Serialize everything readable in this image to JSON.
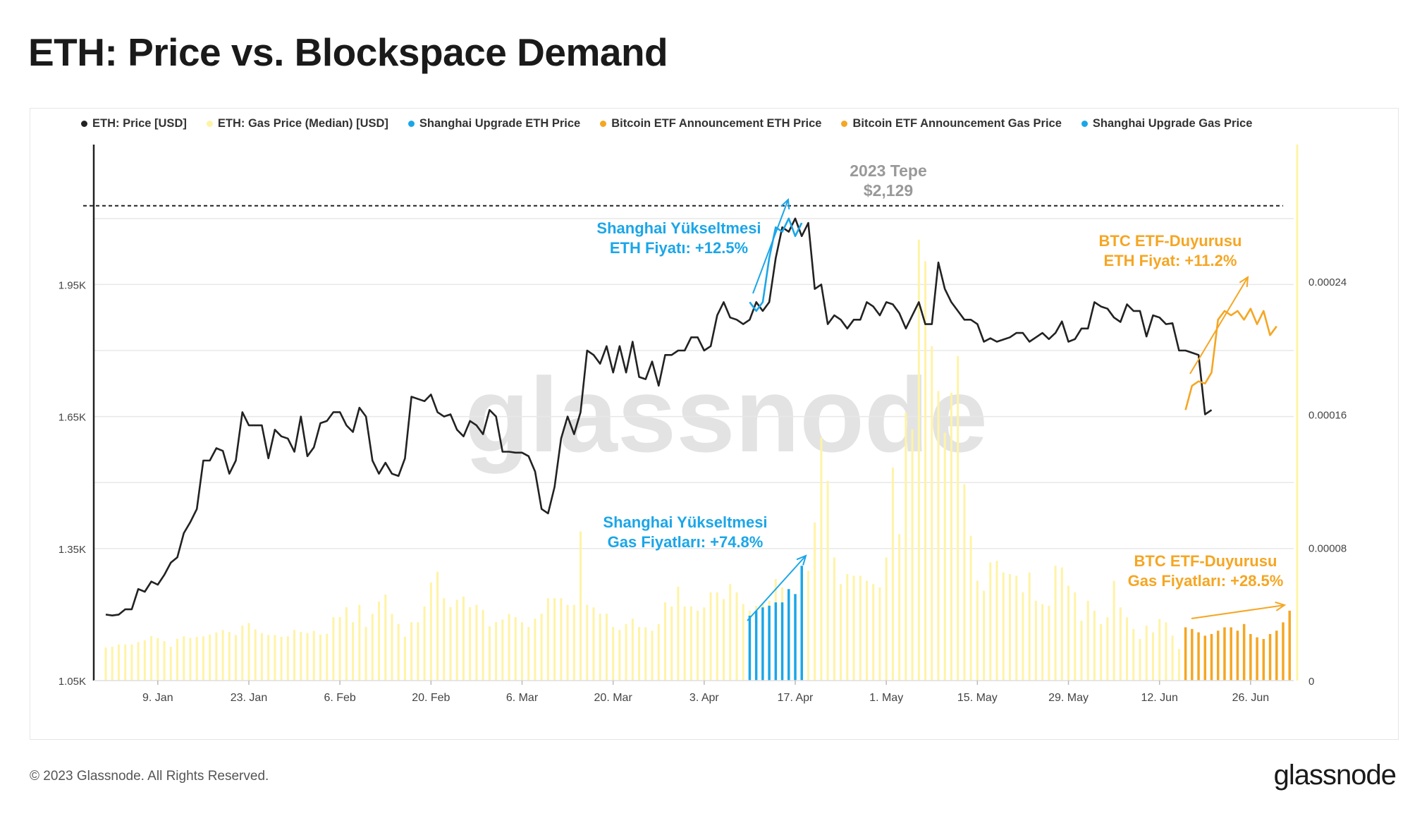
{
  "page": {
    "title": "ETH: Price vs. Blockspace Demand",
    "footer": "© 2023 Glassnode. All Rights Reserved.",
    "brand": "glassnode",
    "watermark": "glassnode"
  },
  "legend": [
    {
      "label": "ETH: Price [USD]",
      "color": "#222222"
    },
    {
      "label": "ETH: Gas Price (Median) [USD]",
      "color": "#fff3a6"
    },
    {
      "label": "Shanghai Upgrade ETH Price",
      "color": "#1ba6e8"
    },
    {
      "label": "Bitcoin ETF Announcement ETH Price",
      "color": "#f5a623"
    },
    {
      "label": "Bitcoin ETF Announcement Gas Price",
      "color": "#f5a623"
    },
    {
      "label": "Shanghai Upgrade Gas Price",
      "color": "#1ba6e8"
    }
  ],
  "annotations": {
    "peak_line1": "2023 Tepe",
    "peak_line2": "$2,129",
    "shanghai_eth_line1": "Shanghai Yükseltmesi",
    "shanghai_eth_line2": "ETH Fiyatı: +12.5%",
    "btc_eth_line1": "BTC ETF-Duyurusu",
    "btc_eth_line2": "ETH Fiyat: +11.2%",
    "shanghai_gas_line1": "Shanghai Yükseltmesi",
    "shanghai_gas_line2": "Gas Fiyatları: +74.8%",
    "btc_gas_line1": "BTC ETF-Duyurusu",
    "btc_gas_line2": "Gas Fiyatları: +28.5%"
  },
  "colors": {
    "price": "#222222",
    "gas": "#fff3a6",
    "shanghai": "#1ba6e8",
    "btc_etf": "#f5a623",
    "grid": "#e8e8e8",
    "peak_text": "#999999"
  },
  "chart_data": {
    "type": "line",
    "title": "ETH: Price vs. Blockspace Demand",
    "x_start": "2023-01-01",
    "x_end": "2023-06-30",
    "x_ticks": [
      {
        "label": "9. Jan",
        "day": 8
      },
      {
        "label": "23. Jan",
        "day": 22
      },
      {
        "label": "6. Feb",
        "day": 36
      },
      {
        "label": "20. Feb",
        "day": 50
      },
      {
        "label": "6. Mar",
        "day": 64
      },
      {
        "label": "20. Mar",
        "day": 78
      },
      {
        "label": "3. Apr",
        "day": 92
      },
      {
        "label": "17. Apr",
        "day": 106
      },
      {
        "label": "1. May",
        "day": 120
      },
      {
        "label": "15. May",
        "day": 134
      },
      {
        "label": "29. May",
        "day": 148
      },
      {
        "label": "12. Jun",
        "day": 162
      },
      {
        "label": "26. Jun",
        "day": 176
      }
    ],
    "y_left": {
      "label": "ETH: Price [USD]",
      "min": 1050,
      "max": 2260,
      "ticks": [
        {
          "value": 1050,
          "label": "1.05K"
        },
        {
          "value": 1350,
          "label": "1.35K"
        },
        {
          "value": 1650,
          "label": "1.65K"
        },
        {
          "value": 1950,
          "label": "1.95K"
        }
      ],
      "gridlines": [
        1350,
        1500,
        1650,
        1800,
        1950,
        2100
      ]
    },
    "y_right": {
      "label": "ETH: Gas Price (Median) [USD]",
      "min": 0,
      "max": 0.00032,
      "ticks": [
        {
          "value": 0,
          "label": "0"
        },
        {
          "value": 8e-05,
          "label": "0.00008"
        },
        {
          "value": 0.00016,
          "label": "0.00016"
        },
        {
          "value": 0.00024,
          "label": "0.00024"
        }
      ]
    },
    "peak_value": 2129,
    "series": [
      {
        "name": "ETH: Price [USD]",
        "axis": "left",
        "start_day": 0,
        "values": [
          1200,
          1198,
          1200,
          1212,
          1212,
          1258,
          1252,
          1275,
          1268,
          1290,
          1318,
          1330,
          1385,
          1410,
          1440,
          1550,
          1550,
          1578,
          1572,
          1520,
          1550,
          1660,
          1630,
          1630,
          1630,
          1555,
          1620,
          1605,
          1600,
          1570,
          1650,
          1560,
          1580,
          1635,
          1640,
          1660,
          1660,
          1630,
          1615,
          1670,
          1650,
          1550,
          1520,
          1545,
          1520,
          1515,
          1555,
          1695,
          1690,
          1685,
          1700,
          1660,
          1650,
          1655,
          1620,
          1605,
          1640,
          1630,
          1610,
          1665,
          1650,
          1570,
          1570,
          1568,
          1568,
          1560,
          1525,
          1440,
          1430,
          1490,
          1600,
          1650,
          1610,
          1660,
          1800,
          1790,
          1770,
          1810,
          1750,
          1810,
          1750,
          1820,
          1740,
          1735,
          1775,
          1720,
          1790,
          1790,
          1800,
          1800,
          1830,
          1830,
          1800,
          1810,
          1880,
          1910,
          1875,
          1870,
          1860,
          1870,
          1910,
          1890,
          1910,
          2010,
          2080,
          2070,
          2100,
          2060,
          2090,
          1940,
          1950,
          1860,
          1880,
          1870,
          1850,
          1870,
          1870,
          1910,
          1900,
          1880,
          1910,
          1905,
          1885,
          1850,
          1880,
          1910,
          1860,
          1860,
          2000,
          1940,
          1910,
          1890,
          1870,
          1870,
          1860,
          1820,
          1828,
          1820,
          1825,
          1830,
          1840,
          1840,
          1820,
          1830,
          1840,
          1826,
          1840,
          1866,
          1820,
          1826,
          1850,
          1850,
          1910,
          1900,
          1895,
          1875,
          1865,
          1905,
          1890,
          1890,
          1832,
          1880,
          1875,
          1860,
          1862,
          1800,
          1800,
          1795,
          1790,
          1655,
          1665
        ],
        "color": "#222222"
      },
      {
        "name": "Shanghai Upgrade ETH Price",
        "axis": "left",
        "start_day": 99,
        "values": [
          1910,
          1890,
          1910,
          2010,
          2080,
          2070,
          2100,
          2060,
          2090
        ],
        "color": "#1ba6e8"
      },
      {
        "name": "Bitcoin ETF Announcement ETH Price",
        "axis": "left",
        "start_day": 166,
        "values": [
          1665,
          1720,
          1730,
          1725,
          1750,
          1870,
          1890,
          1880,
          1890,
          1870,
          1895,
          1860,
          1890,
          1835,
          1855
        ],
        "color": "#f5a623"
      },
      {
        "name": "ETH: Gas Price (Median) [USD]",
        "axis": "right",
        "start_day": 0,
        "type": "bar",
        "values": [
          1.99e-05,
          2.03e-05,
          2.17e-05,
          2.17e-05,
          2.17e-05,
          2.32e-05,
          2.42e-05,
          2.67e-05,
          2.56e-05,
          2.37e-05,
          2.03e-05,
          2.51e-05,
          2.66e-05,
          2.56e-05,
          2.62e-05,
          2.66e-05,
          2.76e-05,
          2.89e-05,
          3.04e-05,
          2.92e-05,
          2.74e-05,
          3.3e-05,
          3.46e-05,
          3.08e-05,
          2.86e-05,
          2.74e-05,
          2.74e-05,
          2.63e-05,
          2.66e-05,
          3.04e-05,
          2.92e-05,
          2.86e-05,
          2.99e-05,
          2.76e-05,
          2.81e-05,
          3.81e-05,
          3.81e-05,
          4.41e-05,
          3.51e-05,
          4.55e-05,
          3.22e-05,
          4.01e-05,
          4.75e-05,
          5.17e-05,
          4.01e-05,
          3.4e-05,
          2.64e-05,
          3.51e-05,
          3.51e-05,
          4.45e-05,
          5.9e-05,
          6.54e-05,
          4.95e-05,
          4.42e-05,
          4.85e-05,
          5.05e-05,
          4.41e-05,
          4.55e-05,
          4.25e-05,
          3.27e-05,
          3.51e-05,
          3.67e-05,
          4.01e-05,
          3.81e-05,
          3.51e-05,
          3.22e-05,
          3.72e-05,
          4.02e-05,
          4.95e-05,
          4.95e-05,
          4.95e-05,
          4.55e-05,
          4.55e-05,
          8.96e-05,
          4.55e-05,
          4.4e-05,
          4.02e-05,
          4.02e-05,
          3.22e-05,
          3.05e-05,
          3.4e-05,
          3.72e-05,
          3.22e-05,
          3.2e-05,
          3e-05,
          3.4e-05,
          4.7e-05,
          4.45e-05,
          5.64e-05,
          4.45e-05,
          4.45e-05,
          4.2e-05,
          4.4e-05,
          5.3e-05,
          5.3e-05,
          4.9e-05,
          5.8e-05,
          5.3e-05,
          4.6e-05,
          4.2e-05,
          4.5e-05,
          4.6e-05,
          4.8e-05,
          6.1e-05,
          5.6e-05,
          5.1e-05,
          5.1e-05,
          6.8e-05,
          6.6e-05,
          9.5e-05,
          0.000146,
          0.00012,
          7.4e-05,
          5.8e-05,
          6.4e-05,
          6.3e-05,
          6.3e-05,
          6e-05,
          5.8e-05,
          5.6e-05,
          7.4e-05,
          0.000128,
          8.8e-05,
          0.000161,
          0.000151,
          0.000265,
          0.000252,
          0.000201,
          0.000174,
          0.000149,
          0.000173,
          0.000195,
          0.000118,
          8.7e-05,
          6e-05,
          5.4e-05,
          7.1e-05,
          7.2e-05,
          6.5e-05,
          6.4e-05,
          6.3e-05,
          5.3e-05,
          6.5e-05,
          4.8e-05,
          4.6e-05,
          4.5e-05,
          6.9e-05,
          6.8e-05,
          5.7e-05,
          5.3e-05,
          3.6e-05,
          4.8e-05,
          4.2e-05,
          3.4e-05,
          3.8e-05,
          6e-05,
          4.4e-05,
          3.8e-05,
          3.1e-05,
          2.5e-05,
          3.3e-05,
          2.9e-05,
          3.7e-05,
          3.5e-05,
          2.7e-05,
          1.9e-05,
          1.7e-05,
          2.4e-05
        ],
        "color": "#fff3a6"
      },
      {
        "name": "Shanghai Upgrade Gas Price",
        "axis": "right",
        "start_day": 99,
        "type": "bar",
        "values": [
          3.9e-05,
          4.2e-05,
          4.4e-05,
          4.5e-05,
          4.7e-05,
          4.7e-05,
          5.5e-05,
          5.2e-05,
          6.9e-05
        ],
        "color": "#1ba6e8"
      },
      {
        "name": "Bitcoin ETF Announcement Gas Price",
        "axis": "right",
        "start_day": 166,
        "type": "bar",
        "values": [
          3.2e-05,
          3.1e-05,
          2.9e-05,
          2.7e-05,
          2.8e-05,
          3e-05,
          3.2e-05,
          3.2e-05,
          3e-05,
          3.4e-05,
          2.8e-05,
          2.6e-05,
          2.5e-05,
          2.8e-05,
          3e-05,
          3.5e-05,
          4.2e-05
        ],
        "color": "#f5a623"
      }
    ]
  }
}
